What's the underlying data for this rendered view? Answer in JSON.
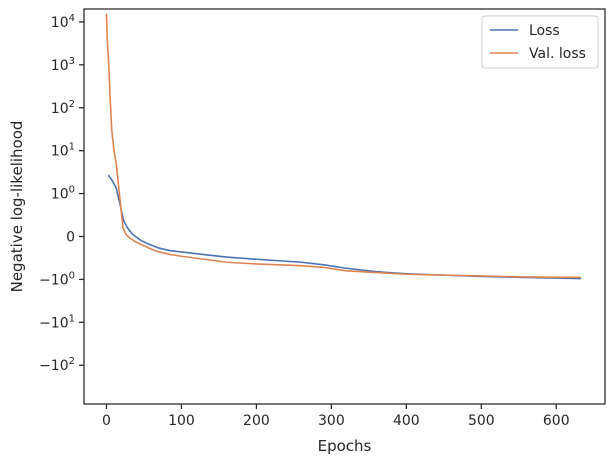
{
  "chart_data": {
    "type": "line",
    "title": "",
    "xlabel": "Epochs",
    "ylabel": "Negative log-likelihood",
    "xlim": [
      -30,
      665
    ],
    "xticks": [
      0,
      100,
      200,
      300,
      400,
      500,
      600
    ],
    "xtick_labels": [
      "0",
      "100",
      "200",
      "300",
      "400",
      "500",
      "600"
    ],
    "yscale": "symlog",
    "linthresh": 1,
    "ylim": [
      -800,
      20000
    ],
    "yticks": [
      10000,
      1000,
      100,
      10,
      1,
      0,
      -1,
      -10,
      -100
    ],
    "ytick_labels": [
      {
        "base": "10",
        "exp": "4"
      },
      {
        "base": "10",
        "exp": "3"
      },
      {
        "base": "10",
        "exp": "2"
      },
      {
        "base": "10",
        "exp": "1"
      },
      {
        "base": "10",
        "exp": "0"
      },
      {
        "base": "0",
        "exp": ""
      },
      {
        "base": "−10",
        "exp": "0"
      },
      {
        "base": "−10",
        "exp": "1"
      },
      {
        "base": "−10",
        "exp": "2"
      }
    ],
    "grid": false,
    "legend_position": "top-right",
    "series": [
      {
        "name": "Loss",
        "color": "#4c72b0",
        "x": [
          3,
          8,
          13,
          18,
          23,
          28,
          35,
          45,
          55,
          70,
          85,
          100,
          130,
          160,
          200,
          260,
          290,
          320,
          360,
          400,
          450,
          500,
          550,
          600,
          632
        ],
        "y": [
          2.63,
          1.97,
          1.35,
          0.75,
          0.36,
          0.2,
          0.05,
          -0.08,
          -0.17,
          -0.27,
          -0.33,
          -0.36,
          -0.42,
          -0.48,
          -0.53,
          -0.6,
          -0.66,
          -0.74,
          -0.82,
          -0.87,
          -0.9,
          -0.93,
          -0.95,
          -0.97,
          -0.98
        ]
      },
      {
        "name": "Val. loss",
        "color": "#dd8452",
        "x": [
          0,
          1,
          3,
          5,
          7,
          10,
          13,
          16,
          19,
          22,
          26,
          30,
          38,
          48,
          58,
          70,
          85,
          100,
          130,
          160,
          200,
          260,
          290,
          320,
          360,
          400,
          450,
          500,
          550,
          600,
          632
        ],
        "y": [
          15000,
          4000,
          1000,
          150,
          30,
          10,
          5,
          1.6,
          0.7,
          0.2,
          0.05,
          -0.02,
          -0.12,
          -0.2,
          -0.28,
          -0.36,
          -0.42,
          -0.46,
          -0.53,
          -0.6,
          -0.64,
          -0.68,
          -0.72,
          -0.8,
          -0.84,
          -0.88,
          -0.9,
          -0.92,
          -0.94,
          -0.95,
          -0.95
        ]
      }
    ]
  }
}
